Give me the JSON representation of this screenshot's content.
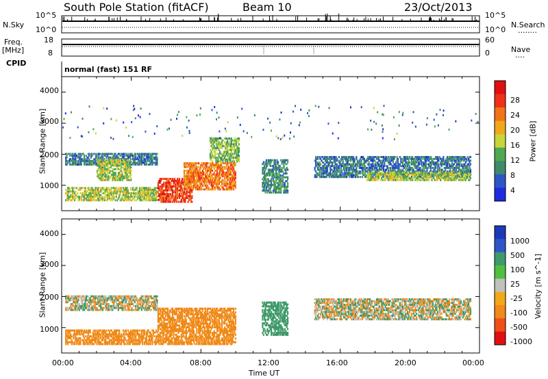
{
  "header": {
    "station": "South Pole Station (fitACF)",
    "beam": "Beam 10",
    "date": "23/Oct/2013"
  },
  "side_labels": {
    "nsky": "N.Sky",
    "nsearch": "N.Search",
    "nsearch_dots": "........",
    "freq_line1": "Freq.",
    "freq_line2": "[MHz]",
    "nave": "Nave",
    "nave_dots": "....",
    "cpid": "CPID"
  },
  "cpid_text": "normal (fast) 151 RF",
  "noise_panel": {
    "left_ticks": [
      "10^5",
      "10^0"
    ],
    "right_ticks": [
      "10^5",
      "10^0"
    ]
  },
  "freq_panel": {
    "left_ticks": [
      "18",
      "8"
    ],
    "right_ticks": [
      "60",
      "0"
    ]
  },
  "colors": {
    "power": [
      "#1c2de0",
      "#2e56c8",
      "#3f8a6a",
      "#50a850",
      "#c8d43c",
      "#f0a818",
      "#f07418",
      "#f03018",
      "#e01010"
    ],
    "velocity_gray": "#c0c0bc",
    "velocity_orange": "#f08a18",
    "velocity_blue": "#2e56c8",
    "velocity_green": "#3f9a6a"
  },
  "chart_data": [
    {
      "type": "heatmap",
      "name": "Power",
      "ylabel": "Slant Range [km]",
      "yticks": [
        1000,
        2000,
        3000,
        4000
      ],
      "ylim": [
        180,
        4500
      ],
      "xlim_hours": [
        0,
        24
      ],
      "colorbar": {
        "label": "Power [dB]",
        "ticks": [
          "28",
          "24",
          "20",
          "16",
          "12",
          "8",
          "4"
        ],
        "range": [
          0,
          30
        ]
      },
      "features": [
        {
          "t0": 0.2,
          "t1": 5.5,
          "r0": 1700,
          "r1": 2100,
          "level": 6
        },
        {
          "t0": 0.2,
          "t1": 5.5,
          "r0": 550,
          "r1": 1000,
          "level": 14
        },
        {
          "t0": 2.0,
          "t1": 4.0,
          "r0": 1200,
          "r1": 1900,
          "level": 14
        },
        {
          "t0": 5.5,
          "t1": 7.5,
          "r0": 500,
          "r1": 1300,
          "level": 26
        },
        {
          "t0": 7.0,
          "t1": 10.0,
          "r0": 900,
          "r1": 1800,
          "level": 22
        },
        {
          "t0": 8.5,
          "t1": 10.2,
          "r0": 1800,
          "r1": 2600,
          "level": 12
        },
        {
          "t0": 11.5,
          "t1": 13.0,
          "r0": 800,
          "r1": 1900,
          "level": 8
        },
        {
          "t0": 14.5,
          "t1": 23.5,
          "r0": 1300,
          "r1": 2000,
          "level": 6
        },
        {
          "t0": 17.5,
          "t1": 23.5,
          "r0": 1200,
          "r1": 1500,
          "level": 14
        }
      ]
    },
    {
      "type": "heatmap",
      "name": "Velocity",
      "ylabel": "Slant Range [km]",
      "xlabel": "Time UT",
      "yticks": [
        1000,
        2000,
        3000,
        4000
      ],
      "ylim": [
        180,
        4500
      ],
      "xlim_hours": [
        0,
        24
      ],
      "xticks": [
        "00:00",
        "04:00",
        "08:00",
        "12:00",
        "16:00",
        "20:00",
        "00:00"
      ],
      "colorbar": {
        "label": "Velocity [m s^-1]",
        "ticks": [
          "1000",
          "500",
          "100",
          "25",
          "-25",
          "-100",
          "-500",
          "-1000"
        ]
      },
      "features": [
        {
          "t0": 0.2,
          "t1": 5.5,
          "r0": 1600,
          "r1": 2100,
          "v": 0
        },
        {
          "t0": 0.2,
          "t1": 5.5,
          "r0": 500,
          "r1": 1000,
          "v": -200
        },
        {
          "t0": 5.5,
          "t1": 10.0,
          "r0": 500,
          "r1": 1700,
          "v": -200
        },
        {
          "t0": 11.5,
          "t1": 13.0,
          "r0": 800,
          "r1": 1900,
          "v": 300
        },
        {
          "t0": 14.5,
          "t1": 23.5,
          "r0": 1300,
          "r1": 2000,
          "v": 0
        }
      ]
    }
  ]
}
